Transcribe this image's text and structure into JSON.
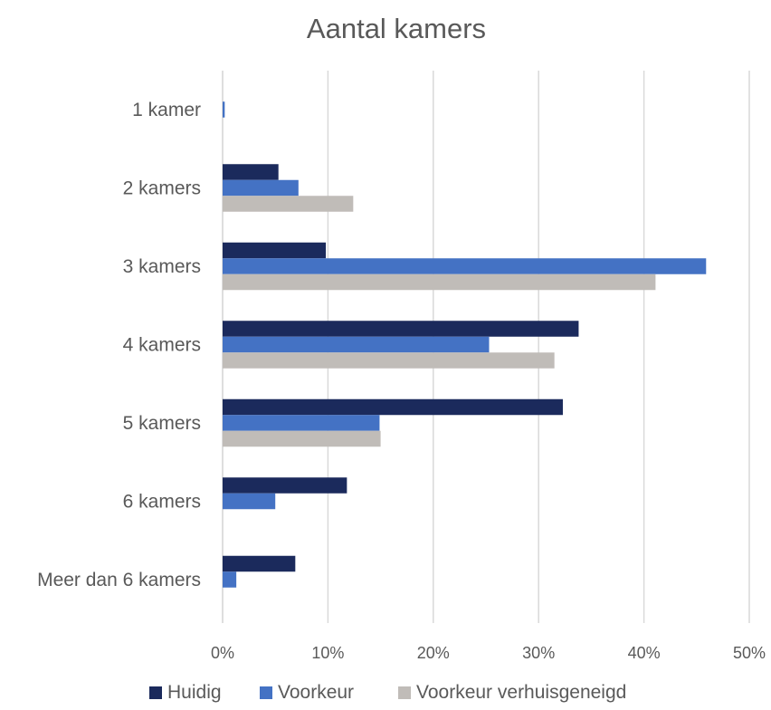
{
  "chart_data": {
    "type": "bar",
    "orientation": "horizontal",
    "title": "Aantal kamers",
    "xlabel": "",
    "ylabel": "",
    "categories": [
      "1 kamer",
      "2 kamers",
      "3 kamers",
      "4 kamers",
      "5 kamers",
      "6 kamers",
      "Meer dan 6 kamers"
    ],
    "xlim": [
      0,
      50
    ],
    "x_ticks": [
      "0%",
      "10%",
      "20%",
      "30%",
      "40%",
      "50%"
    ],
    "grid": true,
    "legend_position": "bottom",
    "series": [
      {
        "name": "Huidig",
        "color": "#1b2a5c",
        "values": [
          0,
          5.3,
          9.8,
          33.8,
          32.3,
          11.8,
          6.9
        ]
      },
      {
        "name": "Voorkeur",
        "color": "#4472c4",
        "values": [
          0.2,
          7.2,
          45.9,
          25.3,
          14.9,
          5.0,
          1.3
        ]
      },
      {
        "name": "Voorkeur verhuisgeneigd",
        "color": "#c0bcb8",
        "values": [
          0,
          12.4,
          41.1,
          31.5,
          15.0,
          0,
          0
        ]
      }
    ]
  }
}
